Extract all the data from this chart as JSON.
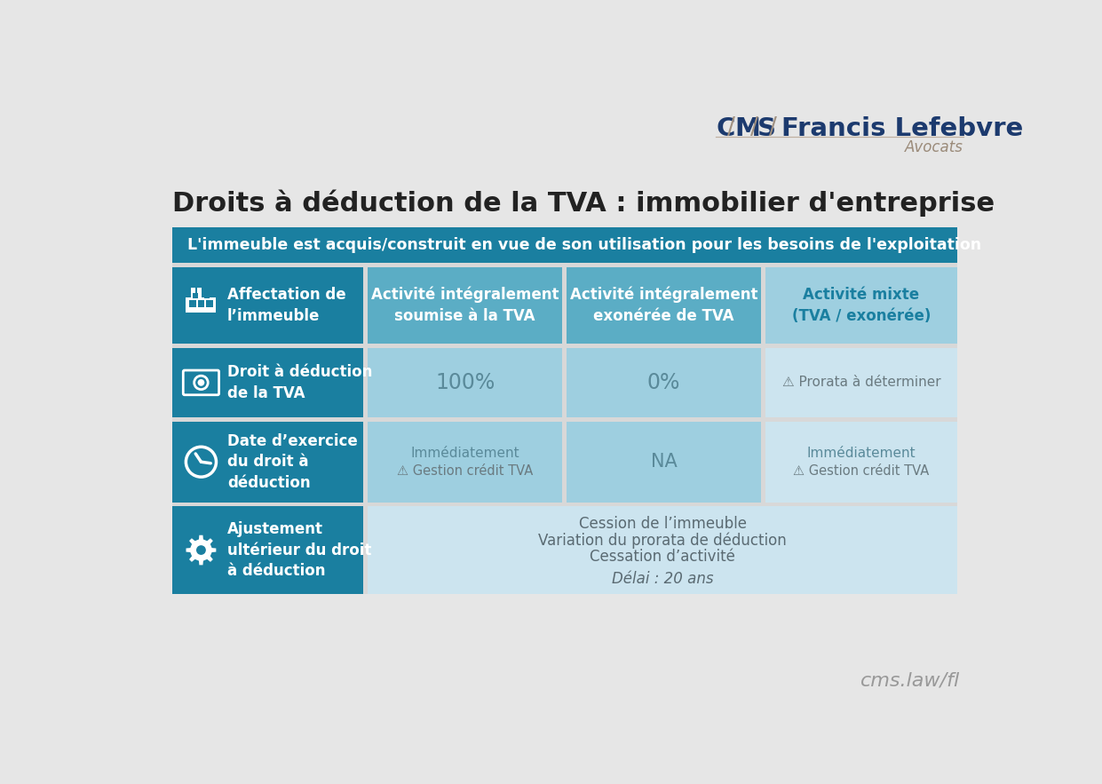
{
  "title": "Droits à déduction de la TVA : immobilier d'entreprise",
  "title_color": "#222222",
  "bg_color": "#e6e6e6",
  "logo_color": "#1c3a6e",
  "logo_slash_color": "#a09080",
  "logo_sub_color": "#9b8b7a",
  "logo_line_color": "#c0b0a0",
  "website": "cms.law/fl",
  "website_color": "#999999",
  "header_text": "L'immeuble est acquis/construit en vue de son utilisation pour les besoins de l'exploitation",
  "header_bg": "#1a7fa0",
  "header_text_color": "#ffffff",
  "teal_dark": "#1a7fa0",
  "teal_medium": "#5badc5",
  "teal_light": "#9ecfe0",
  "teal_very_light": "#cce4ef",
  "row_labels": [
    "Affectation de\nl’immeuble",
    "Droit à déduction\nde la TVA",
    "Date d’exercice\ndu droit à\ndéduction",
    "Ajustement\nultérieur du droit\nà déduction"
  ],
  "col_headers": [
    "Activité intégralement\nsoumise à la TVA",
    "Activité intégralement\nexonérée de TVA",
    "Activité mixte\n(TVA / exonérée)"
  ],
  "col_header_colors": [
    "#ffffff",
    "#ffffff",
    "#1a7fa0"
  ],
  "cell_text_color": "#5a8a9a",
  "cell_text_color2": "#6a7a80",
  "row3_text_color": "#5a6a72"
}
